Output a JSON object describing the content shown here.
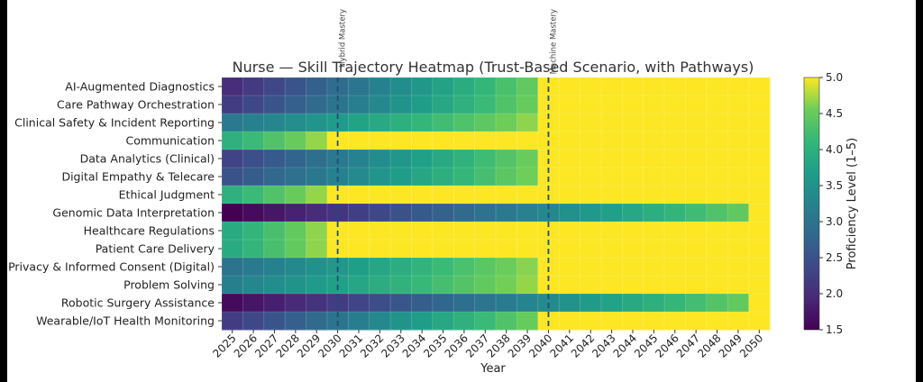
{
  "chart_data": {
    "type": "heatmap",
    "title": "Nurse — Skill Trajectory Heatmap (Trust-Based Scenario, with Pathways)",
    "xlabel": "Year",
    "colorbar_label": "Proficiency Level (1–5)",
    "colorbar_ticks": [
      "1.5",
      "2.0",
      "2.5",
      "3.0",
      "3.5",
      "4.0",
      "4.5",
      "5.0"
    ],
    "color_range": [
      1.5,
      5.0
    ],
    "colormap": "viridis",
    "years": [
      "2025",
      "2026",
      "2027",
      "2028",
      "2029",
      "2030",
      "2031",
      "2032",
      "2033",
      "2034",
      "2035",
      "2036",
      "2037",
      "2038",
      "2039",
      "2040",
      "2041",
      "2042",
      "2043",
      "2044",
      "2045",
      "2046",
      "2047",
      "2048",
      "2049",
      "2050"
    ],
    "skills": [
      {
        "name": "AI-Augmented Diagnostics",
        "start": 2.0,
        "mastery_year": 2040
      },
      {
        "name": "Care Pathway Orchestration",
        "start": 2.2,
        "mastery_year": 2040
      },
      {
        "name": "Clinical Safety & Incident Reporting",
        "start": 3.1,
        "mastery_year": 2040
      },
      {
        "name": "Communication",
        "start": 4.0,
        "mastery_year": 2030
      },
      {
        "name": "Data Analytics (Clinical)",
        "start": 2.3,
        "mastery_year": 2040
      },
      {
        "name": "Digital Empathy & Telecare",
        "start": 2.5,
        "mastery_year": 2040
      },
      {
        "name": "Ethical Judgment",
        "start": 4.0,
        "mastery_year": 2030
      },
      {
        "name": "Genomic Data Interpretation",
        "start": 1.5,
        "mastery_year": 2050
      },
      {
        "name": "Healthcare Regulations",
        "start": 3.9,
        "mastery_year": 2030
      },
      {
        "name": "Patient Care Delivery",
        "start": 3.9,
        "mastery_year": 2030
      },
      {
        "name": "Privacy & Informed Consent (Digital)",
        "start": 3.0,
        "mastery_year": 2040
      },
      {
        "name": "Problem Solving",
        "start": 3.2,
        "mastery_year": 2040
      },
      {
        "name": "Robotic Surgery Assistance",
        "start": 1.6,
        "mastery_year": 2050
      },
      {
        "name": "Wearable/IoT Health Monitoring",
        "start": 2.2,
        "mastery_year": 2040
      }
    ],
    "pathways": [
      {
        "label": "Hybrid Mastery",
        "year": 2030.5
      },
      {
        "label": "Machine Mastery",
        "year": 2040.5
      }
    ],
    "grid": true
  }
}
